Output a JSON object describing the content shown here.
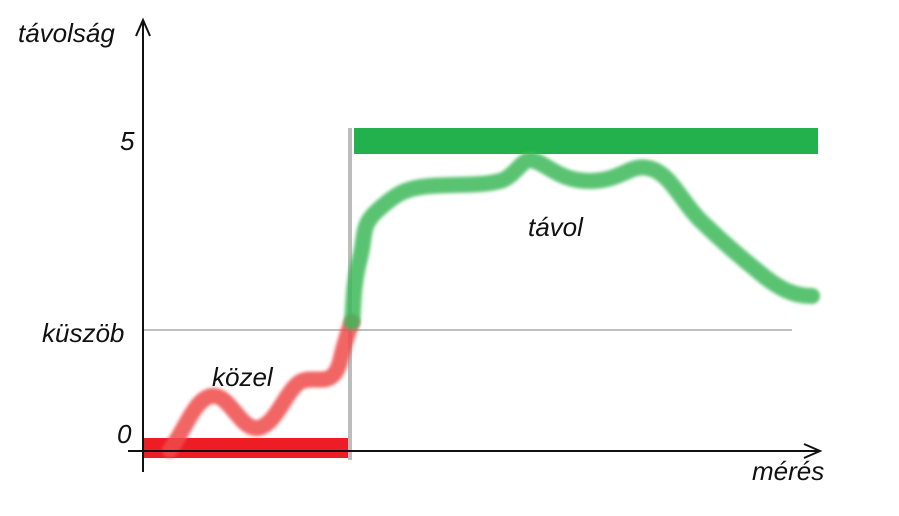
{
  "axes": {
    "y_title": "távolság",
    "x_title": "mérés"
  },
  "ticks": {
    "five": "5",
    "threshold": "küszöb",
    "zero": "0"
  },
  "regions": {
    "near": "közel",
    "far": "távol"
  },
  "colors": {
    "axis": "#111111",
    "threshold_line": "#c0c0c0",
    "divider": "#bdbdbd",
    "red_bar": "#ee1c25",
    "green_bar": "#22b14c",
    "near_curve": "#ef4a4a",
    "far_curve": "#3db85a",
    "five_label": "#22b14c",
    "zero_label": "#ee1c25"
  }
}
